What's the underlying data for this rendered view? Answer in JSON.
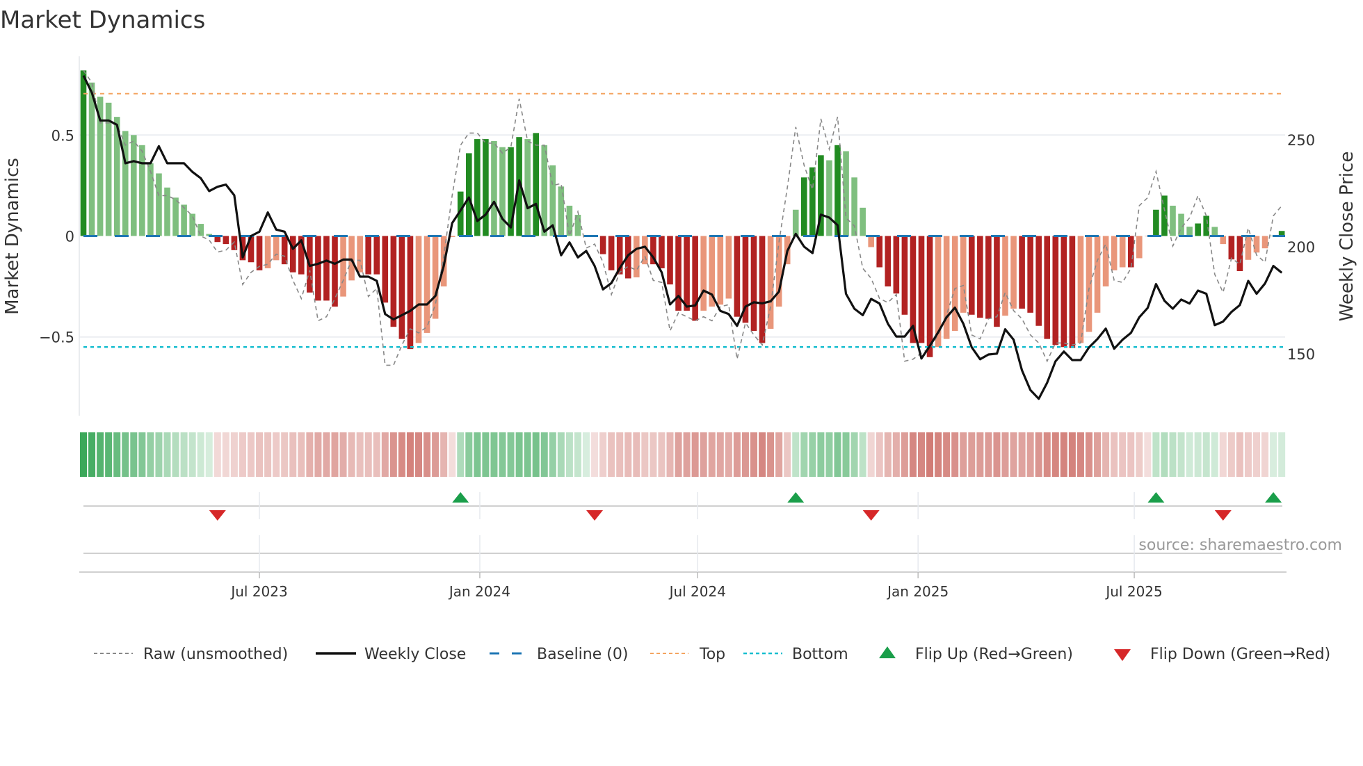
{
  "chart_data": {
    "type": "bar",
    "title": "Market Dynamics",
    "frequency": "weekly",
    "start_date": "2023-02-03",
    "end_date": "2025-10-31",
    "ylabel_left": "Market Dynamics",
    "ylabel_right": "Weekly Close Price",
    "ylim_left": [
      -0.89,
      0.89
    ],
    "ylim_right": [
      121,
      289
    ],
    "yticks_left": [
      {
        "v": 0.5,
        "label": "0.5"
      },
      {
        "v": 0,
        "label": "0"
      },
      {
        "v": -0.5,
        "label": "−0.5"
      }
    ],
    "yticks_right": [
      {
        "v": 250,
        "label": "250"
      },
      {
        "v": 200,
        "label": "200"
      },
      {
        "v": 150,
        "label": "150"
      }
    ],
    "xticks": [
      {
        "week": 21,
        "label": "Jul 2023"
      },
      {
        "week": 47.3,
        "label": "Jan 2024"
      },
      {
        "week": 73.3,
        "label": "Jul 2024"
      },
      {
        "week": 99.6,
        "label": "Jan 2025"
      },
      {
        "week": 125.4,
        "label": "Jul 2025"
      }
    ],
    "grid": true,
    "thresholds": {
      "top": 0.705,
      "bottom": -0.55,
      "baseline": 0
    },
    "colors": {
      "green_strong": "#228b22",
      "green_weak": "#7fbf7f",
      "red_strong": "#b22222",
      "red_weak": "#e9967a",
      "close": "#111111",
      "raw": "#888888",
      "baseline": "#1f77b4",
      "top": "#f4a460",
      "bottom": "#17becf",
      "flip_up": "#1a9e4a",
      "flip_down": "#d62728",
      "heat_green": "#3ca85a",
      "heat_red": "#c55850"
    },
    "series": [
      {
        "name": "Market Dynamics (smoothed)",
        "values": [
          0.82,
          0.76,
          0.69,
          0.66,
          0.59,
          0.52,
          0.5,
          0.45,
          0.36,
          0.31,
          0.24,
          0.19,
          0.155,
          0.11,
          0.06,
          0.01,
          -0.03,
          -0.04,
          -0.07,
          -0.12,
          -0.13,
          -0.17,
          -0.16,
          -0.12,
          -0.14,
          -0.18,
          -0.19,
          -0.28,
          -0.32,
          -0.32,
          -0.35,
          -0.3,
          -0.22,
          -0.18,
          -0.19,
          -0.19,
          -0.33,
          -0.45,
          -0.51,
          -0.56,
          -0.53,
          -0.48,
          -0.41,
          -0.25,
          -0.005,
          0.22,
          0.41,
          0.48,
          0.48,
          0.47,
          0.44,
          0.44,
          0.49,
          0.48,
          0.51,
          0.45,
          0.35,
          0.245,
          0.15,
          0.105,
          0.003,
          -0.002,
          -0.09,
          -0.17,
          -0.19,
          -0.21,
          -0.205,
          -0.14,
          -0.14,
          -0.16,
          -0.24,
          -0.37,
          -0.37,
          -0.42,
          -0.37,
          -0.35,
          -0.34,
          -0.31,
          -0.4,
          -0.43,
          -0.47,
          -0.53,
          -0.46,
          -0.35,
          -0.14,
          0.13,
          0.29,
          0.34,
          0.4,
          0.375,
          0.45,
          0.42,
          0.29,
          0.14,
          -0.055,
          -0.155,
          -0.25,
          -0.285,
          -0.39,
          -0.53,
          -0.53,
          -0.6,
          -0.55,
          -0.51,
          -0.47,
          -0.38,
          -0.39,
          -0.405,
          -0.41,
          -0.45,
          -0.395,
          -0.36,
          -0.36,
          -0.38,
          -0.445,
          -0.51,
          -0.54,
          -0.55,
          -0.555,
          -0.53,
          -0.475,
          -0.38,
          -0.25,
          -0.17,
          -0.155,
          -0.155,
          -0.11,
          -0.002,
          0.13,
          0.2,
          0.15,
          0.11,
          0.046,
          0.062,
          0.1,
          0.045,
          -0.04,
          -0.116,
          -0.174,
          -0.118,
          -0.082,
          -0.061,
          0.002,
          0.025
        ]
      },
      {
        "name": "Raw (unsmoothed)",
        "values": [
          0.82,
          0.76,
          0.56,
          0.56,
          0.55,
          0.45,
          0.47,
          0.42,
          0.32,
          0.2,
          0.2,
          0.18,
          0.14,
          0.1,
          0.0,
          -0.02,
          -0.08,
          -0.07,
          -0.03,
          -0.24,
          -0.18,
          -0.15,
          -0.14,
          -0.09,
          -0.1,
          -0.22,
          -0.31,
          -0.17,
          -0.42,
          -0.4,
          -0.31,
          -0.22,
          -0.12,
          -0.12,
          -0.3,
          -0.26,
          -0.64,
          -0.64,
          -0.54,
          -0.46,
          -0.48,
          -0.45,
          -0.34,
          -0.1,
          0.2,
          0.45,
          0.51,
          0.51,
          0.46,
          0.46,
          0.41,
          0.44,
          0.68,
          0.47,
          0.45,
          0.45,
          0.25,
          0.26,
          0.0,
          0.12,
          -0.06,
          -0.04,
          -0.13,
          -0.29,
          -0.18,
          -0.15,
          -0.17,
          -0.1,
          -0.22,
          -0.23,
          -0.47,
          -0.38,
          -0.4,
          -0.42,
          -0.4,
          -0.42,
          -0.35,
          -0.34,
          -0.61,
          -0.43,
          -0.49,
          -0.54,
          -0.35,
          -0.03,
          0.24,
          0.54,
          0.35,
          0.23,
          0.58,
          0.43,
          0.59,
          0.09,
          0.05,
          -0.16,
          -0.21,
          -0.31,
          -0.33,
          -0.29,
          -0.62,
          -0.61,
          -0.58,
          -0.555,
          -0.49,
          -0.39,
          -0.26,
          -0.245,
          -0.49,
          -0.51,
          -0.41,
          -0.4,
          -0.28,
          -0.37,
          -0.41,
          -0.49,
          -0.53,
          -0.62,
          -0.53,
          -0.53,
          -0.54,
          -0.53,
          -0.26,
          -0.12,
          -0.04,
          -0.22,
          -0.23,
          -0.16,
          0.15,
          0.19,
          0.32,
          0.13,
          -0.05,
          0.04,
          0.09,
          0.2,
          0.1,
          -0.19,
          -0.28,
          -0.11,
          -0.14,
          0.04,
          -0.095,
          -0.13,
          0.1,
          0.15
        ]
      },
      {
        "name": "Weekly Close",
        "axis": "right",
        "values": [
          280,
          272,
          259,
          259,
          257,
          239,
          240,
          239,
          239,
          247,
          239,
          239,
          239,
          235,
          232,
          226,
          228,
          229,
          224,
          195,
          205,
          207,
          216,
          208,
          207,
          199,
          203,
          191,
          192,
          193.5,
          192,
          194,
          194,
          186,
          186,
          184,
          168.5,
          166,
          168,
          170,
          173,
          173,
          177,
          191,
          211,
          217,
          223,
          212,
          215,
          221,
          213,
          209,
          231,
          218,
          220,
          207,
          210,
          196,
          202,
          195,
          198,
          191,
          180,
          183,
          190,
          196,
          199,
          200,
          195,
          188,
          173,
          177,
          172,
          172.5,
          179.5,
          177.6,
          170,
          168.5,
          163,
          172,
          174,
          173.5,
          174.5,
          179,
          198,
          206,
          200,
          197,
          215,
          213.6,
          210,
          178,
          171,
          168,
          175.6,
          173.4,
          164,
          158,
          158,
          163,
          147.7,
          153.6,
          160,
          167,
          171.5,
          164,
          153,
          147.4,
          149.6,
          150,
          161.4,
          156.5,
          142.2,
          133,
          128.9,
          136.4,
          146.4,
          151,
          147,
          147,
          152.9,
          156.8,
          161.7,
          152.3,
          156.5,
          159.7,
          167,
          171.4,
          182.5,
          174.7,
          171,
          175.3,
          173.4,
          179.5,
          178,
          163.3,
          165,
          169.5,
          172.7,
          184,
          178,
          182.8,
          191,
          187.8
        ]
      }
    ],
    "flips": [
      {
        "type": "down",
        "week": 17,
        "date": "2023-05-26"
      },
      {
        "type": "up",
        "week": 46,
        "date": "2023-12-15"
      },
      {
        "type": "down",
        "week": 62,
        "date": "2024-04-05"
      },
      {
        "type": "up",
        "week": 86,
        "date": "2024-09-20"
      },
      {
        "type": "down",
        "week": 95,
        "date": "2024-11-22"
      },
      {
        "type": "up",
        "week": 129,
        "date": "2025-07-18"
      },
      {
        "type": "down",
        "week": 137,
        "date": "2025-09-12"
      },
      {
        "type": "up",
        "week": 143,
        "date": "2025-10-24"
      }
    ],
    "legend": {
      "placement": "bottom",
      "items": [
        {
          "key": "raw",
          "label": "Raw (unsmoothed)"
        },
        {
          "key": "close",
          "label": "Weekly Close"
        },
        {
          "key": "baseline",
          "label": "Baseline (0)"
        },
        {
          "key": "top",
          "label": "Top"
        },
        {
          "key": "bottom",
          "label": "Bottom"
        },
        {
          "key": "up",
          "label": "Flip Up (Red→Green)"
        },
        {
          "key": "down",
          "label": "Flip Down (Green→Red)"
        }
      ]
    },
    "source": "source: sharemaestro.com"
  }
}
